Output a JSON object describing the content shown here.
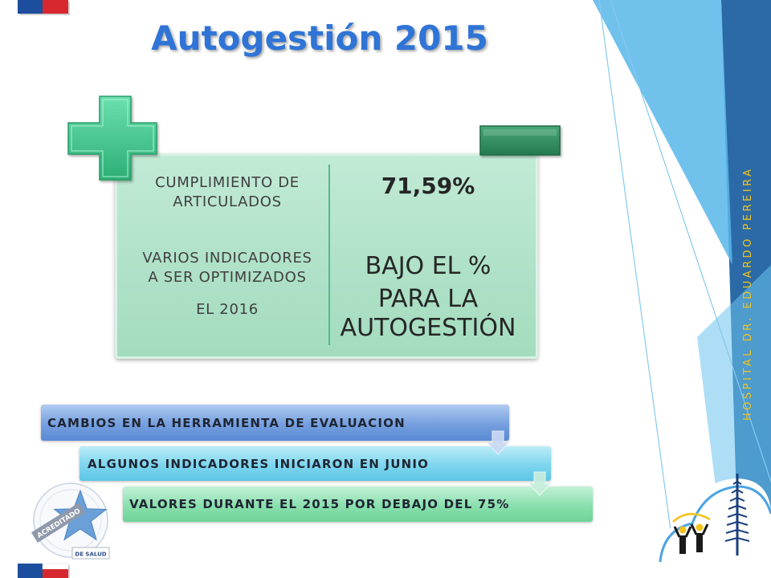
{
  "slide": {
    "title": "Autogestión 2015",
    "side_text": "HOSPITAL DR. EDUARDO PEREIRA"
  },
  "comparison": {
    "plus_icon": "plus-icon",
    "minus_icon": "minus-icon",
    "left": {
      "items": [
        {
          "lines": [
            "CUMPLIMIENTO DE",
            "ARTICULADOS"
          ]
        },
        {
          "lines": [
            "VARIOS INDICADORES",
            "A SER OPTIMIZADOS"
          ]
        },
        {
          "lines": [
            "EL 2016"
          ]
        }
      ]
    },
    "right": {
      "value": "71,59%",
      "lines": [
        "BAJO EL %",
        "PARA LA",
        "AUTOGESTIÓN"
      ]
    }
  },
  "steps": [
    {
      "label": "CAMBIOS EN LA HERRAMIENTA DE EVALUACION",
      "color": "#5A8AD4"
    },
    {
      "label": "ALGUNOS INDICADORES INICIARON EN JUNIO",
      "color": "#5EC6E6"
    },
    {
      "label": "VALORES DURANTE EL 2015 POR DEBAJO DEL 75%",
      "color": "#6ED398"
    }
  ],
  "step_arrow_icon": "down-arrow-icon",
  "logos": {
    "flag_icon": "chile-flag-icon",
    "accreditation": {
      "icon": "star-icon",
      "ribbon_text": "ACREDITADO",
      "footer_text": "DE SALUD"
    },
    "hospital": {
      "icon": "araucaria-tree-icon"
    }
  },
  "colors": {
    "title": "#2F74D6",
    "side_text": "#F3C419",
    "plus": "#3CC68F",
    "minus": "#2E8B5E",
    "comparison_box": "#B3E4CC",
    "accent_blue": "#2B6AA6"
  }
}
